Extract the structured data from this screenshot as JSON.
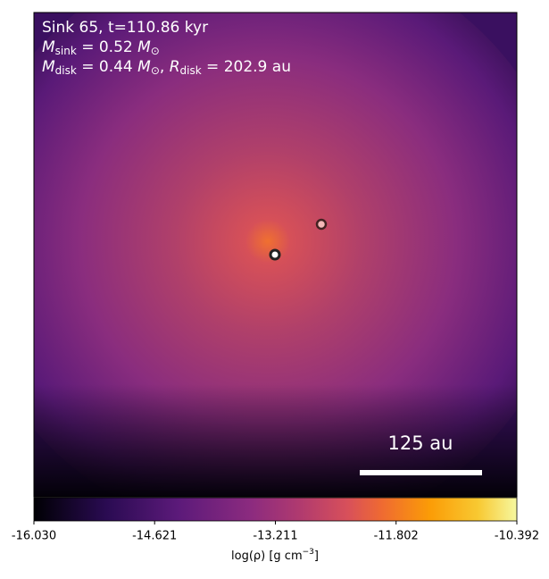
{
  "chart_data": {
    "type": "colorbar-image",
    "title": "Sink 65, t=110.86 kyr",
    "annotations": [
      {
        "symbol": "M",
        "sub": "sink",
        "text": " = 0.52 ",
        "unit": "M",
        "unit_sub": "⊙"
      },
      {
        "symbol": "M",
        "sub": "disk",
        "text": " = 0.44 ",
        "unit": "M",
        "unit_sub": "⊙",
        "sep": ", ",
        "symbol2": "R",
        "sub2": "disk",
        "text2": " = 202.9 au"
      }
    ],
    "scale_bar": "125 au",
    "colorbar": {
      "label": "log(ρ) [g cm",
      "label_sup": "−3",
      "label_end": "]",
      "xlim": [
        -16.03,
        -10.392
      ],
      "xticks": [
        {
          "value": -16.03,
          "label": "-16.030"
        },
        -14.621,
        -13.211,
        -11.802,
        -10.392
      ]
    }
  }
}
